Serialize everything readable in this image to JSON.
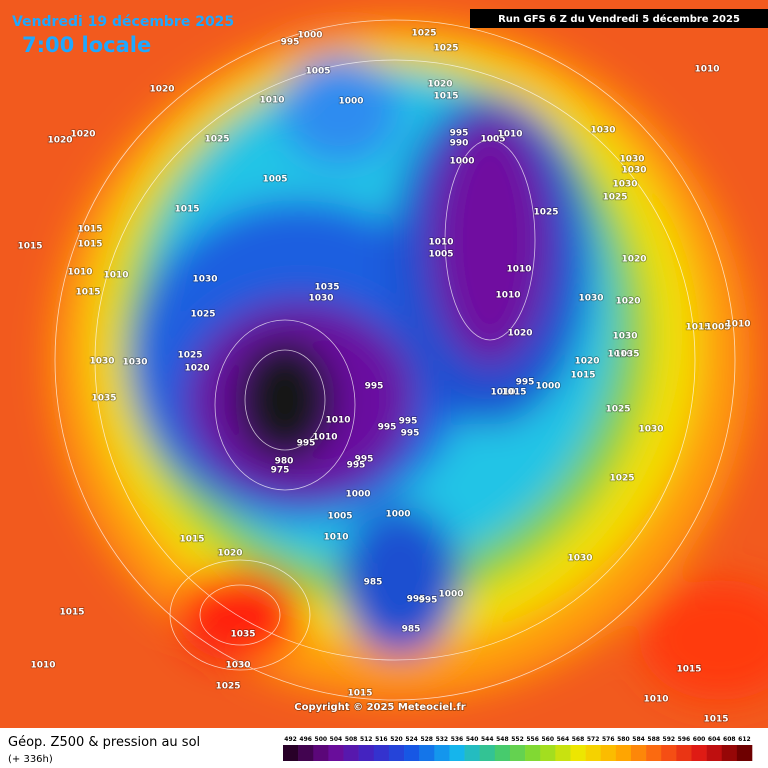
{
  "header": {
    "date": "Vendredi 19 décembre 2025",
    "time": "7:00 locale",
    "run": "Run GFS 6 Z du Vendredi 5 décembre 2025"
  },
  "footer": {
    "title": "Géop. Z500 & pression au sol",
    "lead": "(+ 336h)",
    "copyright": "Copyright © 2025 Meteociel.fr"
  },
  "legend": {
    "values": [
      492,
      496,
      500,
      504,
      508,
      512,
      516,
      520,
      524,
      528,
      532,
      536,
      540,
      544,
      548,
      552,
      556,
      560,
      564,
      568,
      572,
      576,
      580,
      584,
      588,
      592,
      596,
      600,
      604,
      608,
      612
    ]
  },
  "map": {
    "pressure_labels": [
      "1000",
      "995",
      "1025",
      "1025",
      "1010",
      "1020",
      "1005",
      "1010",
      "1000",
      "1020",
      "1015",
      "1025",
      "1020",
      "1020",
      "995",
      "990",
      "1000",
      "1005",
      "1010",
      "1030",
      "1030",
      "1030",
      "1030",
      "1025",
      "1025",
      "1005",
      "1015",
      "1015",
      "1015",
      "1015",
      "1010",
      "1005",
      "1010",
      "1010",
      "1020",
      "1010",
      "1010",
      "1015",
      "1030",
      "1035",
      "1030",
      "1030",
      "1020",
      "1025",
      "1020",
      "1030",
      "1015",
      "1005",
      "1010",
      "1025",
      "1020",
      "1010",
      "1035",
      "1020",
      "1015",
      "1030",
      "1030",
      "995",
      "1000",
      "1010",
      "1015",
      "995",
      "1035",
      "1025",
      "1010",
      "1010",
      "995",
      "995",
      "995",
      "995",
      "995",
      "995",
      "1030",
      "1025",
      "980",
      "975",
      "1000",
      "1000",
      "1005",
      "1015",
      "1010",
      "1020",
      "1030",
      "985",
      "995",
      "995",
      "1000",
      "1015",
      "1035",
      "985",
      "1010",
      "1030",
      "1025",
      "1015",
      "1015",
      "1010",
      "1015"
    ]
  }
}
